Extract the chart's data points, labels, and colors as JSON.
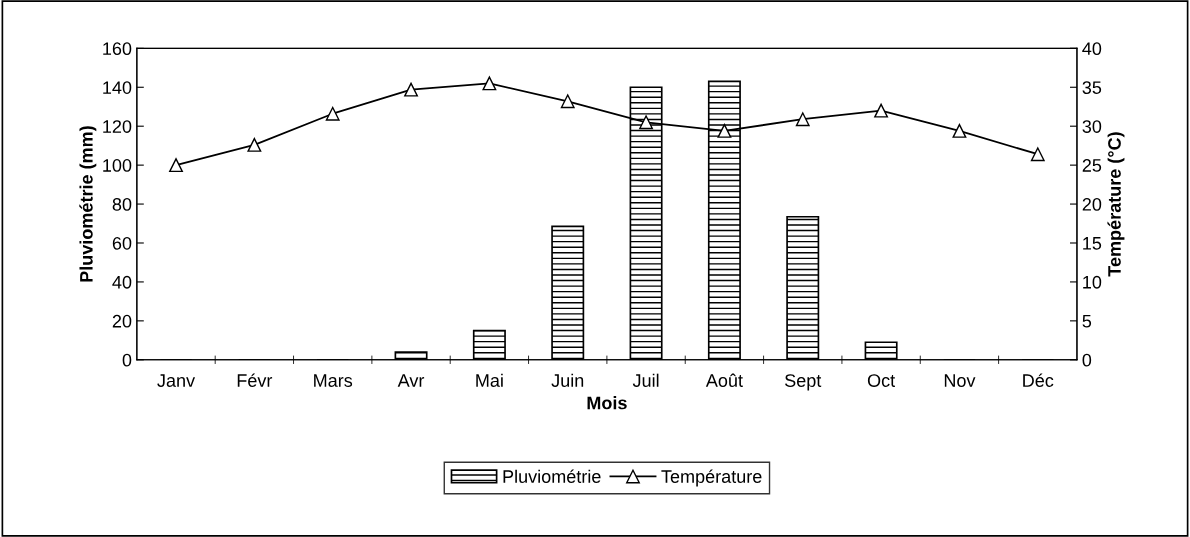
{
  "chart_data": {
    "type": "bar",
    "categories": [
      "Janv",
      "Févr",
      "Mars",
      "Avr",
      "Mai",
      "Juin",
      "Juil",
      "Août",
      "Sept",
      "Oct",
      "Nov",
      "Déc"
    ],
    "xlabel": "Mois",
    "ylabel": "Pluviométrie (mm)",
    "y2label": "Température (°C)",
    "ylim": [
      0,
      160
    ],
    "yticks": [
      0,
      20,
      40,
      60,
      80,
      100,
      120,
      140,
      160
    ],
    "y2lim": [
      0,
      40
    ],
    "y2ticks": [
      0,
      5,
      10,
      15,
      20,
      25,
      30,
      35,
      40
    ],
    "legend": "bottom",
    "grid": false,
    "series": [
      {
        "name": "Pluviométrie",
        "color": "#000000",
        "values": [
          0,
          0,
          0,
          4,
          15,
          68.5,
          140,
          143,
          73.5,
          9,
          0,
          0
        ]
      },
      {
        "name": "Température",
        "type": "line",
        "axis": "y2",
        "color": "#000000",
        "marker": "triangle",
        "line_style": "solid",
        "values": [
          25,
          27.6,
          31.6,
          34.7,
          35.5,
          33.2,
          30.5,
          29.4,
          30.9,
          32,
          29.4,
          26.4
        ]
      }
    ]
  }
}
